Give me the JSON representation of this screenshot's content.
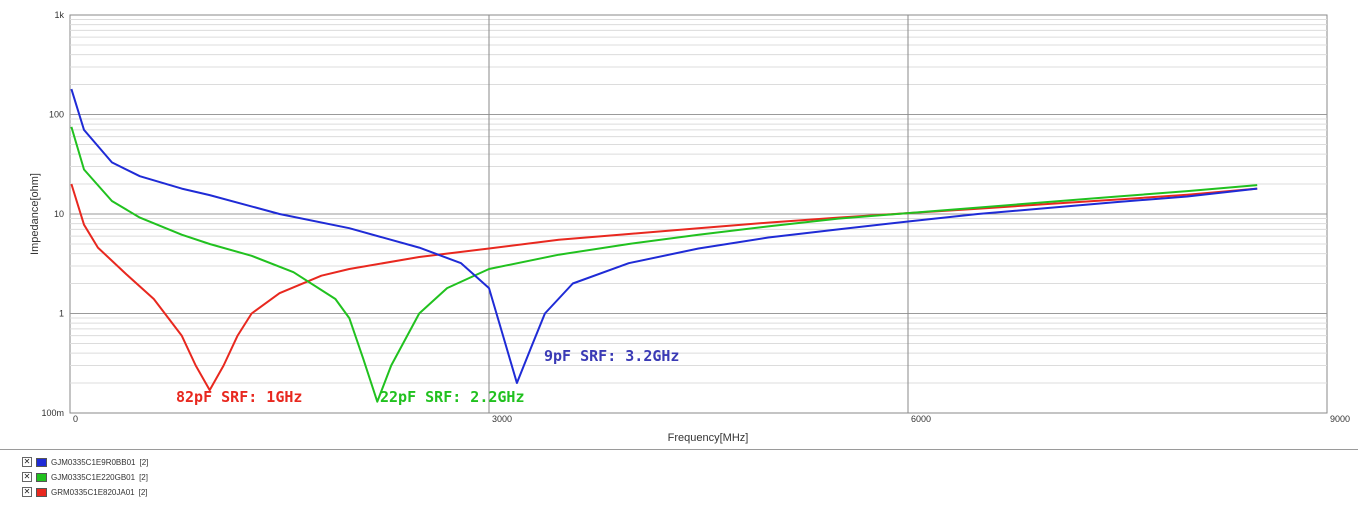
{
  "chart_data": {
    "type": "line",
    "title": "",
    "xlabel": "Frequency[MHz]",
    "ylabel": "Impedance[ohm]",
    "xlim": [
      0,
      9000
    ],
    "ylim": [
      0.1,
      1000
    ],
    "yscale": "log",
    "x_ticks": [
      "0",
      "3000",
      "6000",
      "9000"
    ],
    "y_ticks": [
      "100m",
      "1",
      "10",
      "100",
      "1k"
    ],
    "grid": true,
    "series": [
      {
        "name": "GJM0335C1E9R0BB01",
        "legend_suffix": "[2]",
        "color": "#1f2bd6",
        "x": [
          10,
          100,
          300,
          500,
          800,
          1000,
          1500,
          2000,
          2500,
          2800,
          3000,
          3100,
          3200,
          3300,
          3400,
          3600,
          4000,
          4500,
          5000,
          5500,
          6000,
          6500,
          7000,
          7500,
          8000,
          8500
        ],
        "y": [
          180,
          70,
          33,
          24,
          18,
          15.5,
          10,
          7.2,
          4.6,
          3.2,
          1.8,
          0.6,
          0.2,
          0.45,
          1.0,
          2.0,
          3.2,
          4.5,
          5.8,
          7.0,
          8.4,
          10.0,
          11.5,
          13.2,
          15.0,
          18.0
        ]
      },
      {
        "name": "GJM0335C1E220GB01",
        "legend_suffix": "[2]",
        "color": "#21c11f",
        "x": [
          10,
          100,
          300,
          500,
          800,
          1000,
          1300,
          1600,
          1900,
          2000,
          2100,
          2200,
          2300,
          2500,
          2700,
          3000,
          3500,
          4000,
          4500,
          5000,
          5500,
          6000,
          6500,
          7000,
          7500,
          8000,
          8500
        ],
        "y": [
          75,
          28,
          13.5,
          9.2,
          6.2,
          5.0,
          3.8,
          2.6,
          1.4,
          0.9,
          0.35,
          0.13,
          0.3,
          1.0,
          1.8,
          2.8,
          3.9,
          5.0,
          6.2,
          7.5,
          9.0,
          10.2,
          11.6,
          13.2,
          15.0,
          17.0,
          19.5
        ]
      },
      {
        "name": "GRM0335C1E820JA01",
        "legend_suffix": "[2]",
        "color": "#e8281f",
        "x": [
          10,
          100,
          200,
          400,
          600,
          800,
          900,
          1000,
          1100,
          1200,
          1300,
          1500,
          1800,
          2000,
          2500,
          3000,
          3500,
          4000,
          4500,
          5000,
          5500,
          6000,
          6500,
          7000,
          7500,
          8000,
          8500
        ],
        "y": [
          20,
          7.8,
          4.6,
          2.5,
          1.4,
          0.6,
          0.3,
          0.17,
          0.3,
          0.6,
          1.0,
          1.6,
          2.4,
          2.8,
          3.7,
          4.5,
          5.5,
          6.3,
          7.2,
          8.2,
          9.2,
          10.2,
          11.3,
          12.6,
          14.0,
          15.6,
          18.0
        ]
      }
    ],
    "annotations": [
      {
        "text": "82pF SRF: 1GHz",
        "color": "#e8281f"
      },
      {
        "text": "22pF SRF: 2.2GHz",
        "color": "#21c11f"
      },
      {
        "text": "9pF SRF: 3.2GHz",
        "color": "#3a3ab5"
      }
    ]
  },
  "legend": {
    "check_glyph": "✕"
  }
}
